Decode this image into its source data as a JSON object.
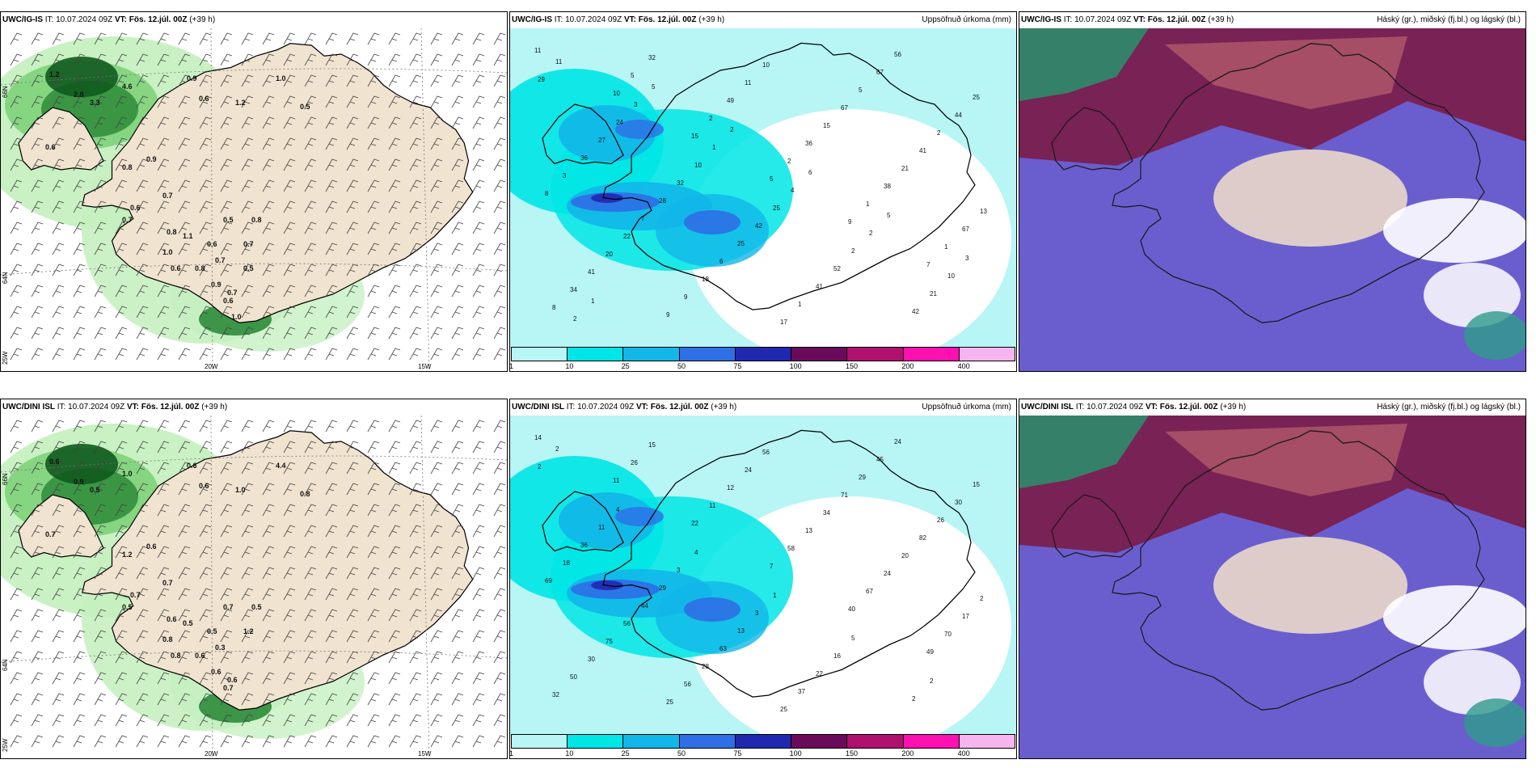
{
  "rows": [
    {
      "panels": [
        {
          "model": "UWC/IG-IS",
          "it": "IT: 10.07.2024 09Z",
          "vt_label": "VT: Fös. 12.júl. 00Z",
          "offset": "(+39 h)",
          "right": ""
        },
        {
          "model": "UWC/IG-IS",
          "it": "IT: 10.07.2024 09Z",
          "vt_label": "VT: Fös. 12.júl. 00Z",
          "offset": "(+39 h)",
          "right": "Uppsöfnuð úrkoma (mm)"
        },
        {
          "model": "UWC/IG-IS",
          "it": "IT: 10.07.2024 09Z",
          "vt_label": "VT: Fös. 12.júl. 00Z",
          "offset": "(+39 h)",
          "right": "Háský (gr.), miðský (fj.bl.) og lágský (bl.)"
        }
      ]
    },
    {
      "panels": [
        {
          "model": "UWC/DINI ISL",
          "it": "IT: 10.07.2024 09Z",
          "vt_label": "VT: Fös. 12.júl. 00Z",
          "offset": "(+39 h)",
          "right": ""
        },
        {
          "model": "UWC/DINI ISL",
          "it": "IT: 10.07.2024 09Z",
          "vt_label": "VT: Fös. 12.júl. 00Z",
          "offset": "(+39 h)",
          "right": "Uppsöfnuð úrkoma (mm)"
        },
        {
          "model": "UWC/DINI ISL",
          "it": "IT: 10.07.2024 09Z",
          "vt_label": "VT: Fös. 12.júl. 00Z",
          "offset": "(+39 h)",
          "right": "Háský (gr.), miðský (fj.bl.) og lágský (bl.)"
        }
      ]
    }
  ],
  "axes": {
    "lat_66": "66N",
    "lat_64": "64N",
    "lon_25": "25W",
    "lon_20": "20W",
    "lon_15": "15W"
  },
  "colorbar": {
    "ticks": [
      "1",
      "10",
      "25",
      "50",
      "75",
      "100",
      "150",
      "200",
      "400"
    ],
    "colors": [
      "#b8f5f5",
      "#00e5e5",
      "#12b6e8",
      "#2e6fe6",
      "#2028b0",
      "#6a0a5a",
      "#b0106e",
      "#ff10b0",
      "#f6b5ee"
    ]
  },
  "precip_labels_top": [
    "11",
    "10",
    "15",
    "5",
    "9",
    "7",
    "8",
    "5",
    "2",
    "2",
    "1",
    "1",
    "34",
    "32",
    "49",
    "36",
    "38",
    "67",
    "41",
    "9",
    "11",
    "15",
    "21",
    "13",
    "20",
    "9",
    "10",
    "67",
    "41",
    "8",
    "22",
    "18",
    "17",
    "5",
    "2",
    "3",
    "7",
    "6",
    "1",
    "67",
    "44",
    "36",
    "28",
    "25",
    "41",
    "56",
    "25",
    "27",
    "32",
    "42",
    "52",
    "42",
    "29",
    "24",
    "10",
    "25",
    "2",
    "21",
    "11",
    "3",
    "1",
    "4",
    "2",
    "10",
    "2",
    "5",
    "2",
    "6",
    "5",
    "3",
    "1"
  ],
  "precip_labels_bottom": [
    "14",
    "11",
    "22",
    "7",
    "40",
    "49",
    "32",
    "26",
    "11",
    "58",
    "67",
    "70",
    "50",
    "15",
    "12",
    "13",
    "24",
    "17",
    "30",
    "25",
    "24",
    "34",
    "20",
    "2",
    "75",
    "56",
    "56",
    "71",
    "82",
    "69",
    "56",
    "28",
    "25",
    "29",
    "26",
    "18",
    "44",
    "63",
    "37",
    "45",
    "30",
    "36",
    "29",
    "13",
    "22",
    "24",
    "15",
    "11",
    "3",
    "3",
    "16",
    "2",
    "2",
    "4",
    "4",
    "1",
    "5",
    "2",
    "2"
  ],
  "wind_labels_top": [
    "1.2",
    "2.8",
    "3.3",
    "4.6",
    "0.9",
    "0.6",
    "1.0",
    "1.2",
    "0.5",
    "0.6",
    "0.8",
    "0.9",
    "0.7",
    "0.6",
    "0.7",
    "1.1",
    "1.0",
    "0.6",
    "0.8",
    "0.5",
    "0.9",
    "0.8",
    "0.6",
    "0.7",
    "0.7",
    "0.6",
    "0.8",
    "0.7",
    "0.5",
    "1.0"
  ],
  "wind_labels_bottom": [
    "0.6",
    "0.9",
    "0.5",
    "1.0",
    "0.6",
    "0.6",
    "4.4",
    "1.0",
    "0.8",
    "0.7",
    "1.2",
    "0.6",
    "0.7",
    "0.7",
    "0.5",
    "0.5",
    "0.8",
    "0.8",
    "0.6",
    "0.7",
    "0.6",
    "0.6",
    "0.5",
    "0.3",
    "1.2",
    "0.7",
    "0.5",
    "0.6"
  ]
}
